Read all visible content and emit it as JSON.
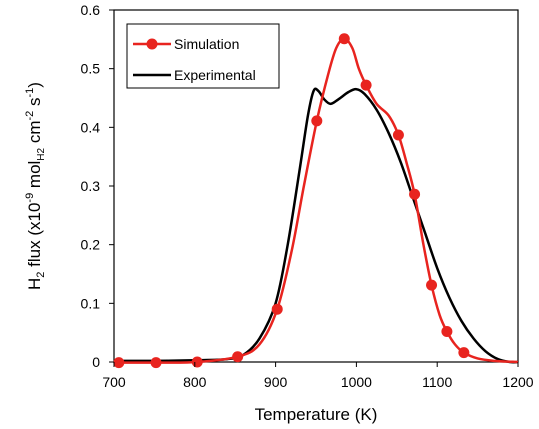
{
  "chart_data": {
    "type": "line",
    "title": "",
    "xlabel": "Temperature (K)",
    "ylabel": {
      "prefix": "H",
      "subscript": "2",
      "mid": " flux (x10",
      "sup1": "-9",
      "mid2": " mol",
      "sub2": "H2",
      "mid3": " cm",
      "sup2": "-2",
      "mid4": " s",
      "sup3": "-1",
      "suffix": ")"
    },
    "xlim": [
      700,
      1200
    ],
    "ylim": [
      0,
      0.6
    ],
    "xticks": [
      700,
      800,
      900,
      1000,
      1100,
      1200
    ],
    "yticks": [
      0,
      0.1,
      0.2,
      0.3,
      0.4,
      0.5,
      0.6
    ],
    "ytick_labels": [
      "0",
      "0.1",
      "0.2",
      "0.3",
      "0.4",
      "0.5",
      "0.6"
    ],
    "grid": false,
    "legend_position": "top-left",
    "series": [
      {
        "name": "Simulation",
        "color": "#e8241f",
        "marker": "circle",
        "points": [
          [
            706,
            -0.001
          ],
          [
            752,
            -0.001
          ],
          [
            803,
            0.0
          ],
          [
            853,
            0.009
          ],
          [
            902,
            0.09
          ],
          [
            951,
            0.411
          ],
          [
            985,
            0.551
          ],
          [
            1012,
            0.472
          ],
          [
            1052,
            0.387
          ],
          [
            1072,
            0.286
          ],
          [
            1093,
            0.131
          ],
          [
            1112,
            0.052
          ],
          [
            1133,
            0.016
          ]
        ],
        "curve": [
          [
            700,
            -0.001
          ],
          [
            752,
            -0.001
          ],
          [
            803,
            0.0
          ],
          [
            853,
            0.009
          ],
          [
            880,
            0.03
          ],
          [
            902,
            0.09
          ],
          [
            920,
            0.19
          ],
          [
            935,
            0.3
          ],
          [
            951,
            0.411
          ],
          [
            965,
            0.49
          ],
          [
            975,
            0.535
          ],
          [
            985,
            0.551
          ],
          [
            995,
            0.535
          ],
          [
            1003,
            0.5
          ],
          [
            1012,
            0.472
          ],
          [
            1025,
            0.44
          ],
          [
            1040,
            0.42
          ],
          [
            1052,
            0.387
          ],
          [
            1062,
            0.34
          ],
          [
            1072,
            0.286
          ],
          [
            1083,
            0.2
          ],
          [
            1093,
            0.131
          ],
          [
            1103,
            0.08
          ],
          [
            1112,
            0.052
          ],
          [
            1122,
            0.03
          ],
          [
            1133,
            0.016
          ],
          [
            1150,
            0.006
          ],
          [
            1170,
            0.002
          ],
          [
            1200,
            0.0
          ]
        ]
      },
      {
        "name": "Experimental",
        "color": "#000000",
        "marker": "none",
        "curve": [
          [
            700,
            0.002
          ],
          [
            750,
            0.002
          ],
          [
            800,
            0.003
          ],
          [
            840,
            0.005
          ],
          [
            860,
            0.012
          ],
          [
            880,
            0.04
          ],
          [
            900,
            0.1
          ],
          [
            915,
            0.2
          ],
          [
            930,
            0.33
          ],
          [
            940,
            0.42
          ],
          [
            947,
            0.462
          ],
          [
            953,
            0.462
          ],
          [
            960,
            0.448
          ],
          [
            968,
            0.44
          ],
          [
            978,
            0.448
          ],
          [
            990,
            0.46
          ],
          [
            1000,
            0.465
          ],
          [
            1010,
            0.457
          ],
          [
            1025,
            0.43
          ],
          [
            1040,
            0.39
          ],
          [
            1055,
            0.34
          ],
          [
            1070,
            0.28
          ],
          [
            1085,
            0.22
          ],
          [
            1100,
            0.16
          ],
          [
            1115,
            0.11
          ],
          [
            1130,
            0.07
          ],
          [
            1145,
            0.04
          ],
          [
            1160,
            0.018
          ],
          [
            1175,
            0.005
          ],
          [
            1190,
            0.0
          ],
          [
            1200,
            0.0
          ]
        ]
      }
    ]
  }
}
